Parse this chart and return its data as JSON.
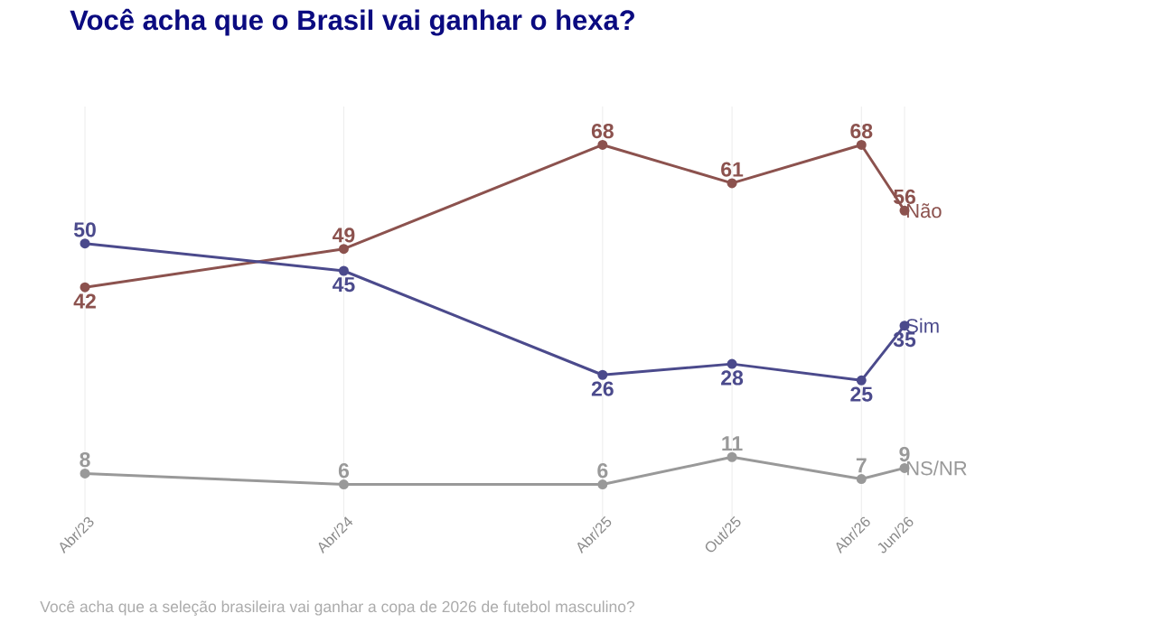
{
  "chart_data": {
    "type": "line",
    "title": "Você acha que o Brasil vai ganhar o hexa?",
    "annotations": [
      "Você acha que a seleção brasileira vai ganhar a copa de 2026 de futebol masculino?"
    ],
    "x": [
      "2023-04",
      "2024-04",
      "2025-04",
      "2025-10",
      "2026-04",
      "2026-06"
    ],
    "series": [
      {
        "name": "Não",
        "color": "#8c524e",
        "values": [
          42,
          49,
          68,
          61,
          68,
          56
        ]
      },
      {
        "name": "Sim",
        "color": "#4b4a8c",
        "values": [
          50,
          45,
          26,
          28,
          25,
          35
        ]
      },
      {
        "name": "NS/NR",
        "color": "#999999",
        "values": [
          8,
          6,
          6,
          11,
          7,
          9
        ]
      }
    ],
    "xlim": [
      "2023-04",
      "2026-06"
    ],
    "xticks": [
      {
        "value": "2023-04",
        "label": "Abr/23"
      },
      {
        "value": "2024-04",
        "label": "Abr/24"
      },
      {
        "value": "2025-04",
        "label": "Abr/25"
      },
      {
        "value": "2025-10",
        "label": "Out/25"
      },
      {
        "value": "2026-04",
        "label": "Abr/26"
      },
      {
        "value": "2026-06",
        "label": "Jun/26"
      }
    ],
    "ylim": [
      0,
      75
    ],
    "grid": "x",
    "data_labels": true,
    "marker": "circle",
    "line_style": "solid"
  }
}
